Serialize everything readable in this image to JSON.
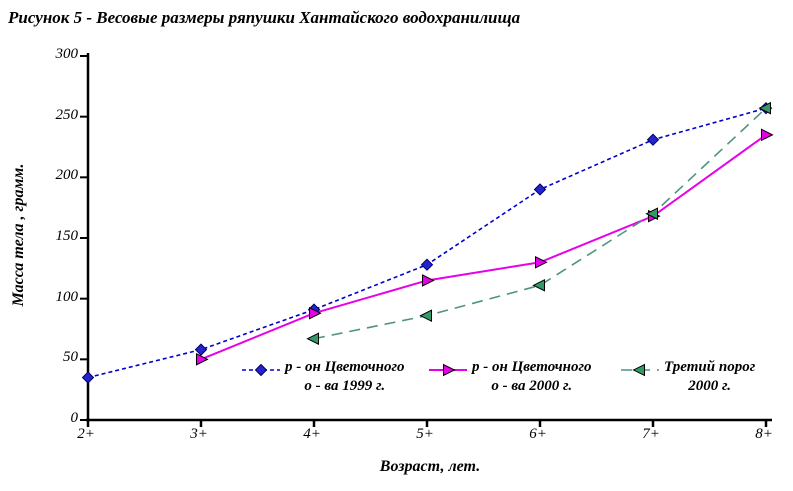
{
  "title": "Рисунок 5 - Весовые размеры ряпушки Хантайского водохранилища",
  "chart_data": {
    "type": "line",
    "title": "Рисунок 5 - Весовые размеры ряпушки Хантайского водохранилища",
    "xlabel": "Возраст, лет.",
    "ylabel": "Масса тела , грамм.",
    "categories": [
      "2+",
      "3+",
      "4+",
      "5+",
      "6+",
      "7+",
      "8+"
    ],
    "ylim": [
      0,
      300
    ],
    "yticks": [
      "0",
      "50",
      "100",
      "150",
      "200",
      "250",
      "300"
    ],
    "grid": false,
    "legend_position": "bottom-inside",
    "axis_color": "#000000",
    "series": [
      {
        "name": "р - он Цветочного о - ва 1999 г.",
        "legend_lines": [
          "р - он Цветочного",
          "о - ва 1999 г."
        ],
        "values": [
          35,
          58,
          91,
          128,
          190,
          231,
          257
        ],
        "line_color": "#0000CC",
        "line_style": "dashed-short",
        "marker": "diamond",
        "marker_fill": "#2424CC",
        "marker_edge": "#000066"
      },
      {
        "name": "р - он Цветочного о - ва 2000 г.",
        "legend_lines": [
          "р - он Цветочного",
          "о - ва 2000 г."
        ],
        "values": [
          null,
          50,
          88,
          115,
          130,
          168,
          235
        ],
        "line_color": "#E800E8",
        "line_style": "solid",
        "marker": "triangle-right",
        "marker_fill": "#E800E8",
        "marker_edge": "#000000"
      },
      {
        "name": "Третий порог 2000 г.",
        "legend_lines": [
          "Третий порог",
          "2000 г."
        ],
        "values": [
          null,
          null,
          67,
          86,
          111,
          170,
          257
        ],
        "line_color": "#4E9480",
        "line_style": "dashed-long",
        "marker": "triangle-left",
        "marker_fill": "#339966",
        "marker_edge": "#000000"
      }
    ]
  }
}
